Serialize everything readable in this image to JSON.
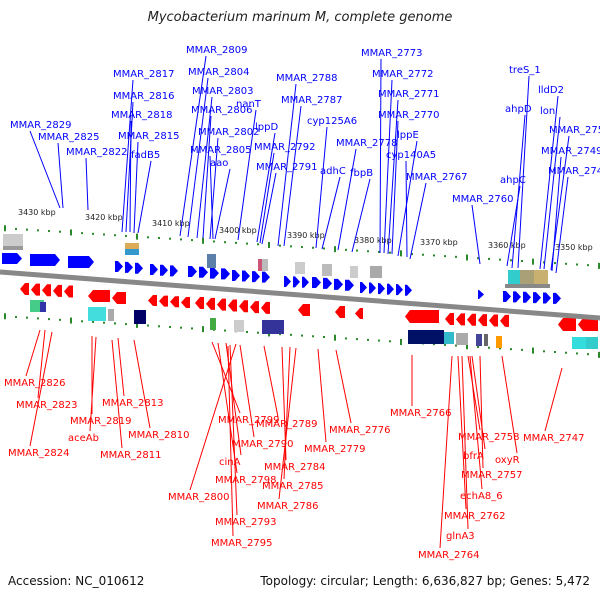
{
  "title": "Mycobacterium marinum M, complete genome",
  "footer": {
    "accession": "Accession: NC_010612",
    "summary": "Topology: circular; Length: 6,636,827 bp; Genes: 5,472"
  },
  "colors": {
    "forward": "#0000ff",
    "reverse": "#ff0000",
    "backbone": "#888888",
    "tick": "#2a8a2a"
  },
  "kbp_labels": [
    "3430 kbp",
    "3420 kbp",
    "3410 kbp",
    "3400 kbp",
    "3390 kbp",
    "3380 kbp",
    "3370 kbp",
    "3360 kbp",
    "3350 kbp"
  ],
  "top_labels": [
    "MMAR_2829",
    "MMAR_2825",
    "MMAR_2822",
    "MMAR_2817",
    "MMAR_2816",
    "MMAR_2818",
    "MMAR_2815",
    "fadB5",
    "MMAR_2809",
    "MMAR_2804",
    "MMAR_2803",
    "MMAR_2806",
    "MMAR_2802",
    "MMAR_2805",
    "aao",
    "nanT",
    "lppD",
    "MMAR_2792",
    "MMAR_2791",
    "MMAR_2788",
    "MMAR_2787",
    "cyp125A6",
    "adhC",
    "MMAR_2778",
    "fbpB",
    "MMAR_2773",
    "MMAR_2772",
    "MMAR_2771",
    "MMAR_2770",
    "lppE",
    "cyp140A5",
    "MMAR_2767",
    "MMAR_2760",
    "treS_1",
    "lldD2",
    "ahpD",
    "lon",
    "ahpC",
    "MMAR_2750",
    "MMAR_2749",
    "MMAR_2748"
  ],
  "bottom_labels": [
    "MMAR_2826",
    "MMAR_2823",
    "MMAR_2824",
    "MMAR_2819",
    "aceAb",
    "MMAR_2813",
    "MMAR_2810",
    "MMAR_2811",
    "MMAR_2799",
    "MMAR_2798",
    "cinA",
    "MMAR_2800",
    "MMAR_2790",
    "MMAR_2789",
    "MMAR_2793",
    "MMAR_2795",
    "MMAR_2784",
    "MMAR_2785",
    "MMAR_2786",
    "MMAR_2776",
    "MMAR_2779",
    "MMAR_2766",
    "MMAR_2758",
    "bfrA",
    "oxyR",
    "MMAR_2757",
    "echA8_6",
    "MMAR_2762",
    "glnA3",
    "MMAR_2764",
    "MMAR_2747"
  ]
}
